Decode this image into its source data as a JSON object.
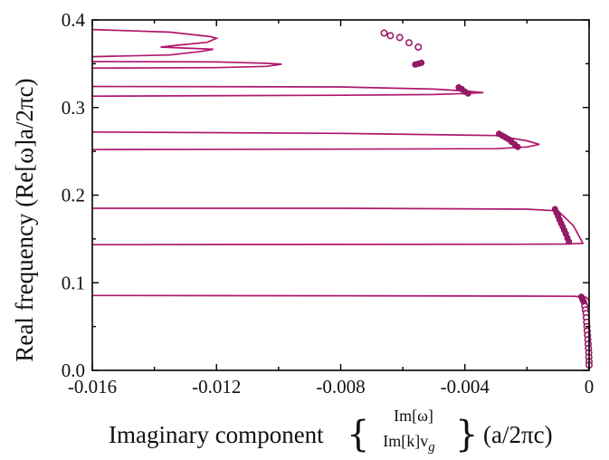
{
  "chart_data": {
    "type": "line",
    "xlabel": {
      "prefix": "Imaginary component",
      "numerator": "Im[ω]",
      "denominator_main": "Im[k]v",
      "denominator_sub": "g",
      "suffix": "(a/2πc)"
    },
    "ylabel": "Real frequency (Re[ω]a/2πc)",
    "xlim": [
      -0.016,
      0
    ],
    "ylim": [
      0,
      0.4
    ],
    "x_ticks": [
      -0.016,
      -0.012,
      -0.008,
      -0.004,
      0
    ],
    "x_tick_labels": [
      "-0.016",
      "-0.012",
      "-0.008",
      "-0.004",
      "0"
    ],
    "y_ticks": [
      0,
      0.1,
      0.2,
      0.3,
      0.4
    ],
    "y_tick_labels": [
      "0.0",
      "0.1",
      "0.2",
      "0.3",
      "0.4"
    ],
    "grid": false,
    "colors": {
      "curve": "#b0176e",
      "points": "#9c1a6a"
    },
    "series": [
      {
        "kind": "curve",
        "points": [
          [
            -0.016,
            0.0855
          ],
          [
            -0.008,
            0.0852
          ],
          [
            -0.002,
            0.0848
          ],
          [
            -0.0005,
            0.0845
          ],
          [
            -0.0001,
            0.0835
          ],
          [
            0.0,
            0.08
          ],
          [
            0.0,
            0.072
          ]
        ]
      },
      {
        "kind": "curve",
        "points": [
          [
            -0.016,
            0.1435
          ],
          [
            -0.008,
            0.1438
          ],
          [
            -0.002,
            0.144
          ],
          [
            -0.0008,
            0.1442
          ],
          [
            -0.0002,
            0.145
          ],
          [
            -0.0005,
            0.165
          ],
          [
            -0.001,
            0.182
          ],
          [
            -0.002,
            0.184
          ],
          [
            -0.008,
            0.185
          ],
          [
            -0.016,
            0.185
          ]
        ]
      },
      {
        "kind": "curve",
        "points": [
          [
            -0.016,
            0.252
          ],
          [
            -0.008,
            0.2525
          ],
          [
            -0.003,
            0.253
          ],
          [
            -0.002,
            0.255
          ],
          [
            -0.0016,
            0.258
          ],
          [
            -0.002,
            0.262
          ],
          [
            -0.003,
            0.268
          ],
          [
            -0.008,
            0.2705
          ],
          [
            -0.016,
            0.272
          ]
        ]
      },
      {
        "kind": "curve",
        "points": [
          [
            -0.016,
            0.313
          ],
          [
            -0.008,
            0.314
          ],
          [
            -0.005,
            0.3148
          ],
          [
            -0.004,
            0.316
          ],
          [
            -0.0034,
            0.317
          ],
          [
            -0.004,
            0.319
          ],
          [
            -0.005,
            0.321
          ],
          [
            -0.008,
            0.3235
          ],
          [
            -0.016,
            0.324
          ]
        ]
      },
      {
        "kind": "curve",
        "points": [
          [
            -0.016,
            0.345
          ],
          [
            -0.012,
            0.3455
          ],
          [
            -0.0104,
            0.347
          ],
          [
            -0.0099,
            0.3495
          ],
          [
            -0.0104,
            0.3505
          ],
          [
            -0.012,
            0.352
          ],
          [
            -0.016,
            0.3525
          ]
        ]
      },
      {
        "kind": "curve",
        "points": [
          [
            -0.016,
            0.358
          ],
          [
            -0.0135,
            0.36
          ],
          [
            -0.0125,
            0.364
          ],
          [
            -0.0121,
            0.3665
          ],
          [
            -0.0138,
            0.369
          ],
          [
            -0.0133,
            0.371
          ],
          [
            -0.0123,
            0.3745
          ],
          [
            -0.012,
            0.379
          ],
          [
            -0.0122,
            0.381
          ],
          [
            -0.0135,
            0.386
          ],
          [
            -0.016,
            0.389
          ]
        ]
      },
      {
        "kind": "points_filled",
        "points": [
          [
            -0.0056,
            0.349
          ],
          [
            -0.0055,
            0.35
          ],
          [
            -0.0054,
            0.351
          ],
          [
            -0.0042,
            0.323
          ],
          [
            -0.0041,
            0.321
          ],
          [
            -0.004,
            0.318
          ],
          [
            -0.0039,
            0.316
          ],
          [
            -0.0029,
            0.27
          ],
          [
            -0.0028,
            0.268
          ],
          [
            -0.0027,
            0.266
          ],
          [
            -0.0026,
            0.264
          ],
          [
            -0.0025,
            0.261
          ],
          [
            -0.0024,
            0.258
          ],
          [
            -0.0023,
            0.255
          ],
          [
            -0.0011,
            0.184
          ],
          [
            -0.00105,
            0.18
          ],
          [
            -0.001,
            0.176
          ],
          [
            -0.00095,
            0.172
          ],
          [
            -0.0009,
            0.168
          ],
          [
            -0.00085,
            0.164
          ],
          [
            -0.0008,
            0.16
          ],
          [
            -0.00075,
            0.156
          ],
          [
            -0.0007,
            0.151
          ],
          [
            -0.00065,
            0.147
          ],
          [
            -0.00025,
            0.084
          ],
          [
            -0.00022,
            0.082
          ],
          [
            -0.0002,
            0.08
          ],
          [
            -0.00017,
            0.078
          ],
          [
            -0.00015,
            0.076
          ]
        ]
      },
      {
        "kind": "points_open",
        "points": [
          [
            -0.0066,
            0.385
          ],
          [
            -0.0064,
            0.382
          ],
          [
            -0.0061,
            0.38
          ],
          [
            -0.0058,
            0.374
          ],
          [
            -0.0055,
            0.369
          ],
          [
            -0.00014,
            0.073
          ],
          [
            -0.00012,
            0.069
          ],
          [
            -0.0001,
            0.065
          ],
          [
            -9e-05,
            0.06
          ],
          [
            -8e-05,
            0.055
          ],
          [
            -7e-05,
            0.05
          ],
          [
            -6e-05,
            0.045
          ],
          [
            -5e-05,
            0.04
          ],
          [
            -4e-05,
            0.035
          ],
          [
            -3e-05,
            0.03
          ],
          [
            -2e-05,
            0.025
          ],
          [
            -1e-05,
            0.02
          ],
          [
            -1e-05,
            0.015
          ],
          [
            0.0,
            0.01
          ],
          [
            0.0,
            0.006
          ]
        ]
      }
    ]
  }
}
